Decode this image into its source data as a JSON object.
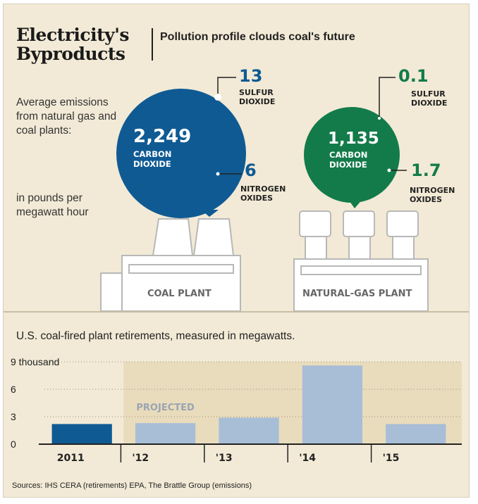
{
  "header": {
    "title_line1": "Electricity's",
    "title_line2": "Byproducts",
    "subtitle": "Pollution profile clouds coal's future"
  },
  "description": {
    "text": "Average emissions from natural gas and coal plants:",
    "units": "in pounds per megawatt hour"
  },
  "coal": {
    "co2": "2,249",
    "co2_label_1": "CARBON",
    "co2_label_2": "DIOXIDE",
    "so2": "13",
    "so2_label_1": "SULFUR",
    "so2_label_2": "DIOXIDE",
    "nox": "6",
    "nox_label_1": "NITROGEN",
    "nox_label_2": "OXIDES",
    "plant_label": "COAL PLANT",
    "color": "#0f5a93"
  },
  "gas": {
    "co2": "1,135",
    "co2_label_1": "CARBON",
    "co2_label_2": "DIOXIDE",
    "so2": "0.1",
    "so2_label_1": "SULFUR",
    "so2_label_2": "DIOXIDE",
    "nox": "1.7",
    "nox_label_1": "NITROGEN",
    "nox_label_2": "OXIDES",
    "plant_label": "NATURAL-GAS PLANT",
    "color": "#137b4a"
  },
  "chart_data": {
    "type": "bar",
    "title": "U.S. coal-fired plant retirements, measured in megawatts.",
    "categories": [
      "2011",
      "'12",
      "'13",
      "'14",
      "'15"
    ],
    "values": [
      2.2,
      2.3,
      2.9,
      8.6,
      2.2
    ],
    "projected_label": "PROJECTED",
    "projected_from_index": 1,
    "y_ticks": [
      {
        "value": 0,
        "label": "0"
      },
      {
        "value": 3,
        "label": "3"
      },
      {
        "value": 6,
        "label": "6"
      },
      {
        "value": 9,
        "label": "9 thousand"
      }
    ],
    "ylim": [
      0,
      9
    ],
    "colors": {
      "actual": "#0f5a93",
      "projected": "#a8bed6",
      "projected_band": "#e9dcbc"
    }
  },
  "sources": "Sources: IHS CERA (retirements) EPA, The Brattle Group  (emissions)"
}
